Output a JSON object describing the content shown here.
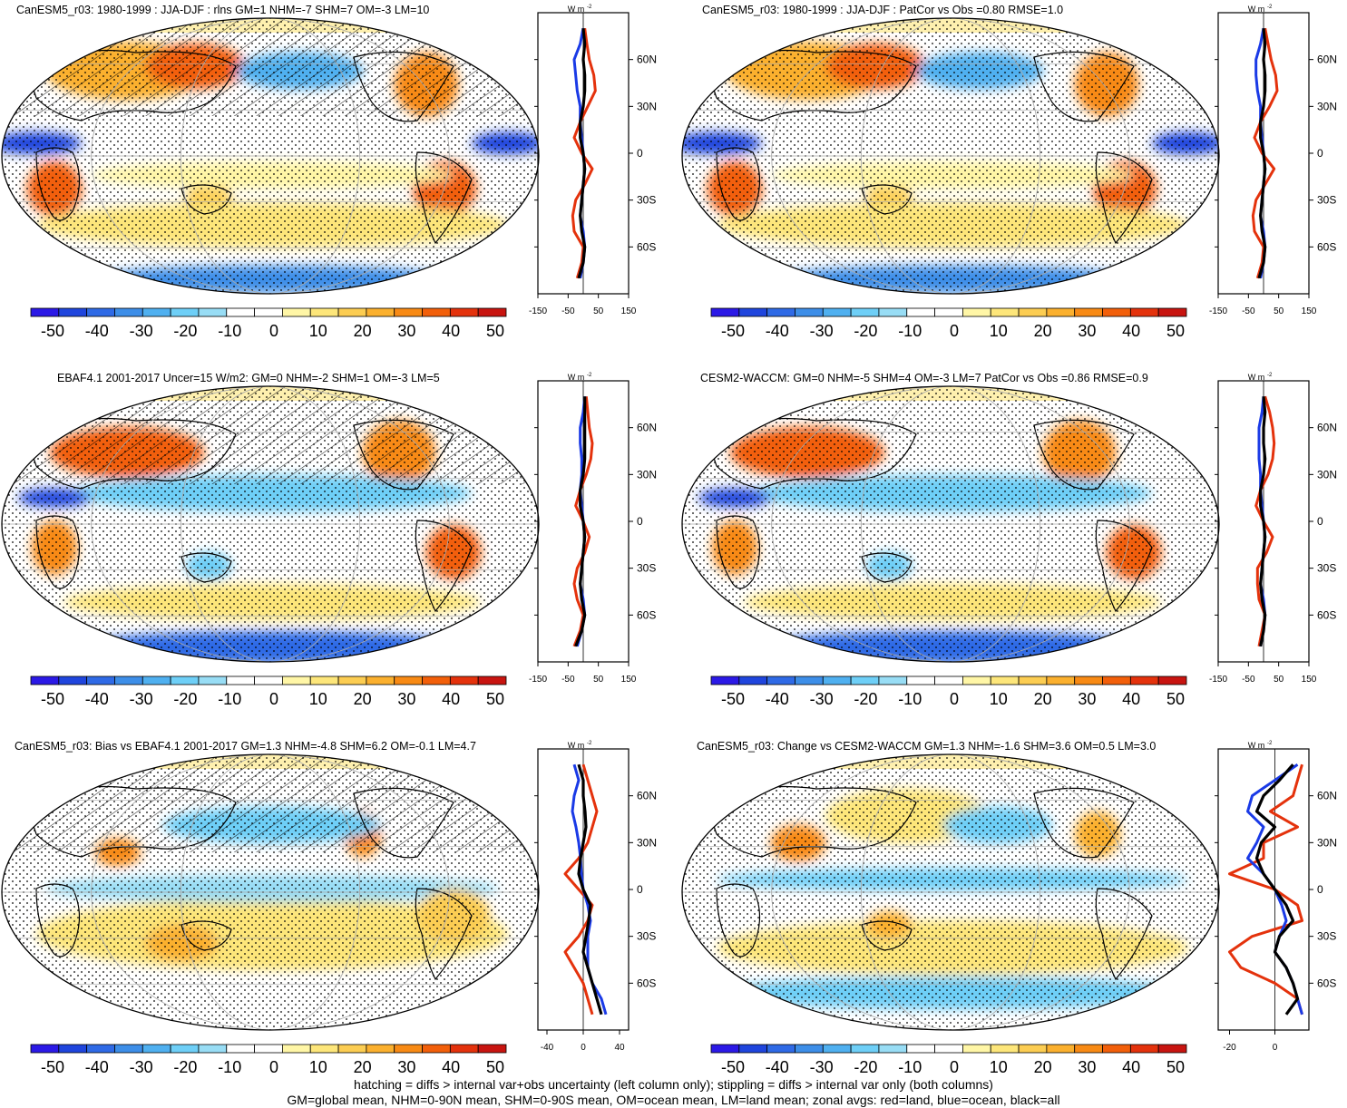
{
  "colors": {
    "cbar": [
      "#2b19e6",
      "#1f45dd",
      "#2f6ae6",
      "#3d8ee8",
      "#4fb0f0",
      "#6ecff7",
      "#98ddf5",
      "#ffffff",
      "#ffffff",
      "#fff6a6",
      "#fde67a",
      "#fccd52",
      "#fbb02e",
      "#f88a14",
      "#f25f0a",
      "#e4320c",
      "#c81410"
    ],
    "land": "#e4320c",
    "ocean": "#1a3ae6",
    "all": "#000000"
  },
  "colorbar_labels": [
    "-50",
    "-40",
    "-30",
    "-20",
    "-10",
    "0",
    "10",
    "20",
    "30",
    "40",
    "50"
  ],
  "units_label": "W m",
  "units_exp": "-2",
  "panels": [
    {
      "title": "CanESM5_r03: 1980-1999 : JJA-DJF : rlns GM=1 NHM=-7 SHM=7 OM=-3 LM=10",
      "hatch": true,
      "scheme": "a"
    },
    {
      "title": "CanESM5_r03: 1980-1999 : JJA-DJF : PatCor vs Obs =0.80 RMSE=1.0",
      "hatch": false,
      "scheme": "a"
    },
    {
      "title": "EBAF4.1 2001-2017 Uncer=15 W/m2: GM=0 NHM=-2 SHM=1 OM=-3 LM=5",
      "hatch": true,
      "scheme": "b"
    },
    {
      "title": "CESM2-WACCM: GM=0 NHM=-5 SHM=4 OM=-3 LM=7 PatCor vs Obs =0.86 RMSE=0.9",
      "hatch": false,
      "scheme": "b"
    },
    {
      "title": "CanESM5_r03: Bias vs EBAF4.1 2001-2017 GM=1.3 NHM=-4.8 SHM=6.2 OM=-0.1 LM=4.7",
      "hatch": true,
      "scheme": "c"
    },
    {
      "title": "CanESM5_r03: Change vs CESM2-WACCM GM=1.3 NHM=-1.6 SHM=3.6 OM=0.5 LM=3.0",
      "hatch": false,
      "scheme": "d"
    }
  ],
  "chart_data": [
    {
      "type": "line",
      "panel": 1,
      "xlim": [
        -150,
        150
      ],
      "xticks": [
        "-150",
        "-50",
        "50",
        "150"
      ],
      "ylim": [
        -80,
        80
      ],
      "yticks": [
        "60N",
        "30N",
        "0",
        "30S",
        "60S"
      ],
      "lat": [
        80,
        70,
        60,
        50,
        40,
        30,
        20,
        10,
        0,
        -10,
        -20,
        -30,
        -40,
        -50,
        -60,
        -70,
        -80
      ],
      "series": [
        {
          "name": "land",
          "values": [
            5,
            12,
            20,
            35,
            40,
            15,
            -10,
            -30,
            -5,
            30,
            5,
            -25,
            -35,
            -30,
            0,
            -5,
            -20
          ]
        },
        {
          "name": "ocean",
          "values": [
            0,
            -10,
            -30,
            -25,
            -20,
            -10,
            -10,
            -5,
            0,
            5,
            0,
            -5,
            -10,
            0,
            5,
            0,
            -10
          ]
        },
        {
          "name": "all",
          "values": [
            0,
            5,
            0,
            5,
            5,
            0,
            -10,
            -10,
            0,
            5,
            0,
            -5,
            -10,
            -5,
            5,
            0,
            -15
          ]
        }
      ]
    },
    {
      "type": "line",
      "panel": 2,
      "xlim": [
        -150,
        150
      ],
      "xticks": [
        "-150",
        "-50",
        "50",
        "150"
      ],
      "ylim": [
        -80,
        80
      ],
      "yticks": [
        "60N",
        "30N",
        "0",
        "30S",
        "60S"
      ],
      "lat": [
        80,
        70,
        60,
        50,
        40,
        30,
        20,
        10,
        0,
        -10,
        -20,
        -30,
        -40,
        -50,
        -60,
        -70,
        -80
      ],
      "series": [
        {
          "name": "land",
          "values": [
            5,
            15,
            25,
            40,
            45,
            20,
            -10,
            -30,
            -5,
            35,
            5,
            -25,
            -35,
            -30,
            0,
            -5,
            -20
          ]
        },
        {
          "name": "ocean",
          "values": [
            0,
            -10,
            -25,
            -25,
            -20,
            -10,
            -10,
            -5,
            0,
            5,
            0,
            -5,
            -10,
            0,
            5,
            0,
            -10
          ]
        },
        {
          "name": "all",
          "values": [
            0,
            5,
            0,
            5,
            5,
            0,
            -10,
            -10,
            0,
            5,
            0,
            -5,
            -10,
            -5,
            5,
            0,
            -15
          ]
        }
      ]
    },
    {
      "type": "line",
      "panel": 3,
      "xlim": [
        -150,
        150
      ],
      "xticks": [
        "-150",
        "-50",
        "50",
        "150"
      ],
      "ylim": [
        -80,
        80
      ],
      "yticks": [
        "60N",
        "30N",
        "0",
        "30S",
        "60S"
      ],
      "lat": [
        80,
        70,
        60,
        50,
        40,
        30,
        20,
        10,
        0,
        -10,
        -20,
        -30,
        -40,
        -50,
        -60,
        -70,
        -80
      ],
      "series": [
        {
          "name": "land",
          "values": [
            10,
            15,
            20,
            30,
            25,
            10,
            -10,
            -25,
            0,
            20,
            5,
            -20,
            -30,
            -20,
            0,
            -10,
            -30
          ]
        },
        {
          "name": "ocean",
          "values": [
            5,
            0,
            -10,
            -10,
            -5,
            -5,
            -10,
            -5,
            0,
            5,
            0,
            -5,
            -10,
            0,
            5,
            -5,
            -20
          ]
        },
        {
          "name": "all",
          "values": [
            5,
            5,
            5,
            5,
            5,
            0,
            -10,
            -10,
            0,
            5,
            0,
            -5,
            -10,
            -5,
            5,
            -5,
            -25
          ]
        }
      ]
    },
    {
      "type": "line",
      "panel": 4,
      "xlim": [
        -150,
        150
      ],
      "xticks": [
        "-150",
        "-50",
        "50",
        "150"
      ],
      "ylim": [
        -80,
        80
      ],
      "yticks": [
        "60N",
        "30N",
        "0",
        "30S",
        "60S"
      ],
      "lat": [
        80,
        70,
        60,
        50,
        40,
        30,
        20,
        10,
        0,
        -10,
        -20,
        -30,
        -40,
        -50,
        -60,
        -70,
        -80
      ],
      "series": [
        {
          "name": "land",
          "values": [
            5,
            20,
            30,
            35,
            30,
            15,
            -10,
            -25,
            0,
            30,
            10,
            -20,
            -20,
            -15,
            5,
            -5,
            -15
          ]
        },
        {
          "name": "ocean",
          "values": [
            0,
            -5,
            -15,
            -15,
            -15,
            -10,
            -10,
            -5,
            0,
            5,
            0,
            -5,
            -10,
            0,
            5,
            0,
            -10
          ]
        },
        {
          "name": "all",
          "values": [
            0,
            5,
            0,
            0,
            5,
            0,
            -10,
            -10,
            0,
            5,
            0,
            -5,
            -10,
            -5,
            5,
            0,
            -10
          ]
        }
      ]
    },
    {
      "type": "line",
      "panel": 5,
      "xlim": [
        -50,
        50
      ],
      "xticks": [
        "-40",
        "0",
        "40"
      ],
      "ylim": [
        -80,
        80
      ],
      "yticks": [
        "60N",
        "30N",
        "0",
        "30S",
        "60S"
      ],
      "lat": [
        80,
        70,
        60,
        50,
        40,
        30,
        20,
        10,
        0,
        -10,
        -20,
        -30,
        -40,
        -50,
        -60,
        -70,
        -80
      ],
      "series": [
        {
          "name": "land",
          "values": [
            0,
            5,
            10,
            15,
            10,
            5,
            -5,
            -20,
            -5,
            10,
            5,
            -5,
            -20,
            -10,
            0,
            5,
            10
          ]
        },
        {
          "name": "ocean",
          "values": [
            -10,
            -5,
            -10,
            -12,
            -8,
            -5,
            -3,
            -2,
            0,
            5,
            8,
            5,
            5,
            5,
            10,
            20,
            25
          ]
        },
        {
          "name": "all",
          "values": [
            -5,
            0,
            0,
            2,
            3,
            0,
            -3,
            -5,
            0,
            8,
            6,
            3,
            0,
            5,
            10,
            15,
            20
          ]
        }
      ]
    },
    {
      "type": "line",
      "panel": 6,
      "xlim": [
        -25,
        15
      ],
      "xticks": [
        "-20",
        "0"
      ],
      "ylim": [
        -80,
        80
      ],
      "yticks": [
        "60N",
        "30N",
        "0",
        "30S",
        "60S"
      ],
      "lat": [
        80,
        70,
        60,
        50,
        40,
        30,
        20,
        10,
        0,
        -10,
        -20,
        -30,
        -40,
        -50,
        -60,
        -70,
        -80
      ],
      "series": [
        {
          "name": "land",
          "values": [
            12,
            10,
            8,
            -2,
            10,
            -5,
            -5,
            -20,
            0,
            10,
            12,
            -10,
            -20,
            -15,
            0,
            10,
            12
          ]
        },
        {
          "name": "ocean",
          "values": [
            10,
            0,
            -10,
            -12,
            -5,
            -8,
            -12,
            -5,
            0,
            3,
            5,
            2,
            0,
            5,
            8,
            10,
            12
          ]
        },
        {
          "name": "all",
          "values": [
            8,
            2,
            -5,
            -8,
            0,
            -6,
            -8,
            -5,
            0,
            5,
            8,
            2,
            0,
            5,
            8,
            10,
            5
          ]
        }
      ]
    }
  ],
  "footnote": {
    "line1": "hatching = diffs > internal var+obs uncertainty (left column only); stippling = diffs > internal var only (both columns)",
    "line2": "GM=global mean, NHM=0-90N mean, SHM=0-90S mean, OM=ocean mean, LM=land mean; zonal avgs: red=land, blue=ocean, black=all"
  }
}
